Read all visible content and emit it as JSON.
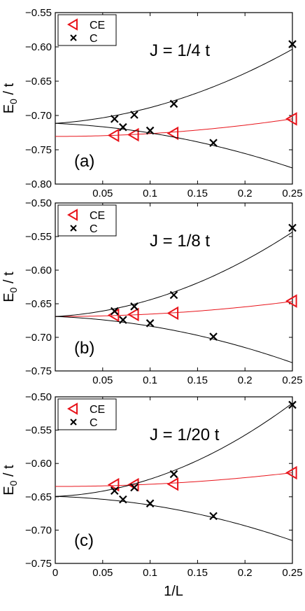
{
  "xlabel": "1/L",
  "colors": {
    "ce": "#e8141b",
    "c": "#000000",
    "axis": "#000000"
  },
  "chart_data": [
    {
      "type": "line",
      "panel": "(a)",
      "annotation": "J = 1/4 t",
      "ylabel_main": "E",
      "ylabel_sub": "0",
      "ylabel_rest": " / t",
      "xlim": [
        0,
        0.25
      ],
      "ylim": [
        -0.8,
        -0.55
      ],
      "xticks": [
        0.05,
        0.1,
        0.15,
        0.2,
        0.25
      ],
      "xtick_labels": [
        "0.05",
        "0.1",
        "0.15",
        "0.2",
        "0.25"
      ],
      "yticks": [
        -0.55,
        -0.6,
        -0.65,
        -0.7,
        -0.75,
        -0.8
      ],
      "ytick_labels": [
        "−0.55",
        "−0.60",
        "−0.65",
        "−0.70",
        "−0.75",
        "−0.80"
      ],
      "legend": [
        "CE",
        "C"
      ],
      "series": [
        {
          "name": "CE",
          "marker": "triangle-left",
          "x": [
            0.0625,
            0.0833,
            0.125,
            0.25
          ],
          "y": [
            -0.729,
            -0.728,
            -0.726,
            -0.705
          ],
          "fit": [
            -0.7305,
            0.0,
            0.41
          ]
        },
        {
          "name": "C",
          "marker": "x",
          "x": [
            0.0625,
            0.0833,
            0.125,
            0.25
          ],
          "y": [
            -0.705,
            -0.699,
            -0.683,
            -0.596
          ],
          "fit": [
            -0.7115,
            0.095,
            1.35
          ]
        },
        {
          "name": "C",
          "marker": "x",
          "x": [
            0.0714,
            0.1,
            0.1667
          ],
          "y": [
            -0.717,
            -0.722,
            -0.74
          ],
          "fit": [
            -0.7115,
            -0.06,
            -0.8
          ]
        }
      ]
    },
    {
      "type": "line",
      "panel": "(b)",
      "annotation": "J = 1/8 t",
      "ylabel_main": "E",
      "ylabel_sub": "0",
      "ylabel_rest": " / t",
      "xlim": [
        0,
        0.25
      ],
      "ylim": [
        -0.75,
        -0.5
      ],
      "xticks": [
        0.05,
        0.1,
        0.15,
        0.2,
        0.25
      ],
      "xtick_labels": [
        "0.05",
        "0.1",
        "0.15",
        "0.2",
        "0.25"
      ],
      "yticks": [
        -0.5,
        -0.55,
        -0.6,
        -0.65,
        -0.7,
        -0.75
      ],
      "ytick_labels": [
        "−0.50",
        "−0.55",
        "−0.60",
        "−0.65",
        "−0.70",
        "−0.75"
      ],
      "legend": [
        "CE",
        "C"
      ],
      "series": [
        {
          "name": "CE",
          "marker": "triangle-left",
          "x": [
            0.0625,
            0.0833,
            0.125,
            0.25
          ],
          "y": [
            -0.667,
            -0.666,
            -0.664,
            -0.646
          ],
          "fit": [
            -0.669,
            0.0,
            0.36
          ]
        },
        {
          "name": "C",
          "marker": "x",
          "x": [
            0.0625,
            0.0833,
            0.125,
            0.25
          ],
          "y": [
            -0.661,
            -0.654,
            -0.637,
            -0.537
          ],
          "fit": [
            -0.669,
            0.08,
            1.69
          ]
        },
        {
          "name": "C",
          "marker": "x",
          "x": [
            0.0714,
            0.1,
            0.1667
          ],
          "y": [
            -0.674,
            -0.679,
            -0.699
          ],
          "fit": [
            -0.669,
            -0.055,
            -0.88
          ]
        }
      ]
    },
    {
      "type": "line",
      "panel": "(c)",
      "annotation": "J = 1/20 t",
      "ylabel_main": "E",
      "ylabel_sub": "0",
      "ylabel_rest": " / t",
      "xlim": [
        0,
        0.25
      ],
      "ylim": [
        -0.75,
        -0.5
      ],
      "xticks": [
        0,
        0.05,
        0.1,
        0.15,
        0.2,
        0.25
      ],
      "xtick_labels": [
        "0",
        "0.05",
        "0.1",
        "0.15",
        "0.2",
        "0.25"
      ],
      "yticks": [
        -0.5,
        -0.55,
        -0.6,
        -0.65,
        -0.7,
        -0.75
      ],
      "ytick_labels": [
        "−0.50",
        "−0.55",
        "−0.60",
        "−0.65",
        "−0.70",
        "−0.75"
      ],
      "legend": [
        "CE",
        "C"
      ],
      "series": [
        {
          "name": "CE",
          "marker": "triangle-left",
          "x": [
            0.0625,
            0.0833,
            0.125,
            0.25
          ],
          "y": [
            -0.632,
            -0.632,
            -0.631,
            -0.614
          ],
          "fit": [
            -0.6345,
            0.0,
            0.33
          ]
        },
        {
          "name": "C",
          "marker": "x",
          "x": [
            0.0625,
            0.0833,
            0.125,
            0.25
          ],
          "y": [
            -0.641,
            -0.636,
            -0.616,
            -0.512
          ],
          "fit": [
            -0.6495,
            0.06,
            2.0
          ]
        },
        {
          "name": "C",
          "marker": "x",
          "x": [
            0.0714,
            0.1,
            0.1667
          ],
          "y": [
            -0.654,
            -0.66,
            -0.679
          ],
          "fit": [
            -0.6495,
            -0.04,
            -0.9
          ]
        }
      ]
    }
  ]
}
